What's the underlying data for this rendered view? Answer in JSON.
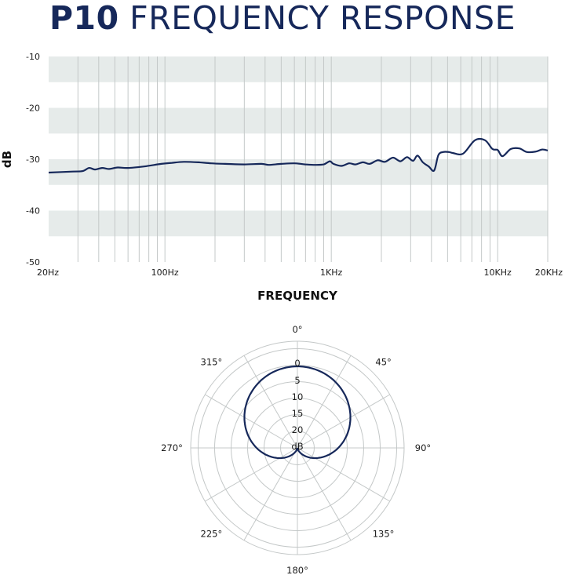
{
  "title": {
    "model": "P10",
    "rest": "FREQUENCY RESPONSE"
  },
  "colors": {
    "curve": "#16285a",
    "band": "#e6ebea",
    "grid": "#c4c8c8"
  },
  "chart_data": [
    {
      "type": "line",
      "title": "P10 FREQUENCY RESPONSE",
      "xlabel": "FREQUENCY",
      "ylabel": "dB",
      "x_scale": "log",
      "xlim": [
        20,
        20000
      ],
      "ylim": [
        -50,
        -10
      ],
      "y_ticks": [
        -10,
        -20,
        -30,
        -40,
        -50
      ],
      "y_tick_labels": [
        "-10",
        "-20",
        "-30",
        "-40",
        "-50"
      ],
      "x_ticks": [
        20,
        100,
        1000,
        10000,
        20000
      ],
      "x_tick_labels": [
        "20Hz",
        "100Hz",
        "1KHz",
        "10KHz",
        "20KHz"
      ],
      "shaded_bands": [
        [
          -15,
          -10
        ],
        [
          -25,
          -20
        ],
        [
          -35,
          -30
        ],
        [
          -45,
          -40
        ]
      ],
      "grid": true,
      "series": [
        {
          "x": [
            20,
            28,
            32,
            35,
            38,
            42,
            46,
            52,
            60,
            75,
            95,
            110,
            130,
            160,
            190,
            230,
            300,
            380,
            420,
            500,
            600,
            700,
            800,
            900,
            980,
            1030,
            1150,
            1280,
            1400,
            1550,
            1700,
            1900,
            2100,
            2350,
            2600,
            2850,
            3100,
            3300,
            3550,
            3850,
            4150,
            4400,
            4700,
            5100,
            5400,
            6200,
            7300,
            8400,
            9300,
            10000,
            10700,
            12000,
            13500,
            15000,
            17000,
            18500,
            20000
          ],
          "y": [
            -32.6,
            -32.4,
            -32.3,
            -31.7,
            -32.0,
            -31.7,
            -31.9,
            -31.6,
            -31.7,
            -31.4,
            -30.9,
            -30.7,
            -30.5,
            -30.6,
            -30.8,
            -30.9,
            -31.0,
            -30.9,
            -31.1,
            -30.9,
            -30.8,
            -31.0,
            -31.1,
            -31.0,
            -30.4,
            -30.9,
            -31.3,
            -30.8,
            -31.0,
            -30.6,
            -30.9,
            -30.2,
            -30.5,
            -29.7,
            -30.4,
            -29.6,
            -30.3,
            -29.3,
            -30.6,
            -31.4,
            -32.2,
            -29.2,
            -28.6,
            -28.6,
            -28.8,
            -28.9,
            -26.3,
            -26.3,
            -28.0,
            -28.2,
            -29.4,
            -28.0,
            -27.9,
            -28.6,
            -28.5,
            -28.1,
            -28.3
          ]
        }
      ]
    },
    {
      "type": "polar",
      "angle_labels": [
        "0°",
        "45°",
        "90°",
        "135°",
        "180°",
        "225°",
        "270°",
        "315°"
      ],
      "radial_labels": [
        "0",
        "5",
        "10",
        "15",
        "20",
        "dB"
      ],
      "rlim_db": [
        0,
        25
      ],
      "series": [
        {
          "pattern": "cardioid",
          "angles_deg": [
            0,
            30,
            60,
            90,
            120,
            150,
            180
          ],
          "attenuation_db": [
            0,
            1.2,
            3.5,
            6.0,
            10.5,
            17.0,
            25.0
          ]
        }
      ]
    }
  ]
}
